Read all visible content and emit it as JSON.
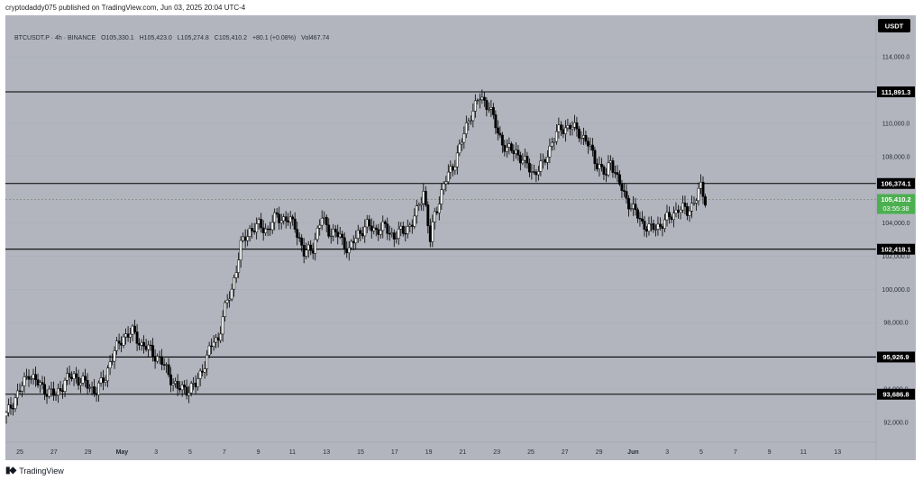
{
  "header": {
    "publisher_line": "cryptodaddy075 published on TradingView.com, Jun 03, 2025 20:04 UTC-4"
  },
  "legend": {
    "symbol": "BTCUSDT.P · 4h · BINANCE",
    "open": "O105,330.1",
    "high": "H105,423.0",
    "low": "L105,274.8",
    "close": "C105,410.2",
    "change": "+80.1 (+0.08%)",
    "volume": "Vol467.74"
  },
  "currency_badge": "USDT",
  "footer": {
    "brand": "TradingView",
    "logo_icon": "tradingview-logo-icon"
  },
  "colors": {
    "background": "#b2b5be",
    "candle_up": "#ffffff",
    "candle_down": "#000000",
    "level_line": "#000000",
    "current_price": "#4caf50"
  },
  "chart_data": {
    "type": "candlestick",
    "ylim": [
      90800,
      116500
    ],
    "y_ticks": [
      "92,000.0",
      "94,000.0",
      "98,000.0",
      "100,000.0",
      "102,000.0",
      "104,000.0",
      "108,000.0",
      "110,000.0",
      "114,000.0"
    ],
    "x_ticks": [
      "25",
      "27",
      "29",
      "May",
      "3",
      "5",
      "7",
      "9",
      "11",
      "13",
      "15",
      "17",
      "19",
      "21",
      "23",
      "25",
      "27",
      "29",
      "Jun",
      "3",
      "5",
      "7",
      "9",
      "11",
      "13"
    ],
    "levels": [
      {
        "value": 111891.3,
        "label": "111,891.3"
      },
      {
        "value": 106374.1,
        "label": "106,374.1"
      },
      {
        "value": 102418.1,
        "label": "102,418.1"
      },
      {
        "value": 95926.9,
        "label": "95,926.9"
      },
      {
        "value": 93686.8,
        "label": "93,686.8"
      }
    ],
    "current_price": {
      "value": 105410.2,
      "label": "105,410.2",
      "countdown": "03:55:38"
    },
    "close_path": [
      [
        0,
        92400
      ],
      [
        4,
        93500
      ],
      [
        8,
        94400
      ],
      [
        10,
        95000
      ],
      [
        14,
        94300
      ],
      [
        18,
        93900
      ],
      [
        22,
        93600
      ],
      [
        26,
        94500
      ],
      [
        30,
        94800
      ],
      [
        36,
        94200
      ],
      [
        40,
        93900
      ],
      [
        44,
        94700
      ],
      [
        46,
        95700
      ],
      [
        52,
        97200
      ],
      [
        56,
        97400
      ],
      [
        60,
        96700
      ],
      [
        64,
        96300
      ],
      [
        68,
        95800
      ],
      [
        72,
        94900
      ],
      [
        76,
        94000
      ],
      [
        80,
        94000
      ],
      [
        84,
        94200
      ],
      [
        88,
        95600
      ],
      [
        92,
        96900
      ],
      [
        94,
        97000
      ],
      [
        96,
        98400
      ],
      [
        100,
        100000
      ],
      [
        104,
        102600
      ],
      [
        108,
        103600
      ],
      [
        112,
        103800
      ],
      [
        116,
        103600
      ],
      [
        120,
        104400
      ],
      [
        124,
        104200
      ],
      [
        128,
        103900
      ],
      [
        132,
        102100
      ],
      [
        136,
        102600
      ],
      [
        140,
        104300
      ],
      [
        144,
        103400
      ],
      [
        148,
        103200
      ],
      [
        152,
        102300
      ],
      [
        156,
        103400
      ],
      [
        160,
        103800
      ],
      [
        164,
        103600
      ],
      [
        168,
        103700
      ],
      [
        172,
        103200
      ],
      [
        176,
        103500
      ],
      [
        180,
        104000
      ],
      [
        182,
        104600
      ],
      [
        185,
        106000
      ],
      [
        188,
        102900
      ],
      [
        190,
        104500
      ],
      [
        194,
        106300
      ],
      [
        198,
        107400
      ],
      [
        202,
        108900
      ],
      [
        206,
        110600
      ],
      [
        210,
        111500
      ],
      [
        214,
        111100
      ],
      [
        218,
        109400
      ],
      [
        222,
        108400
      ],
      [
        226,
        108300
      ],
      [
        230,
        107600
      ],
      [
        234,
        107000
      ],
      [
        238,
        107500
      ],
      [
        242,
        108900
      ],
      [
        246,
        109700
      ],
      [
        250,
        109800
      ],
      [
        254,
        109500
      ],
      [
        258,
        108700
      ],
      [
        262,
        107600
      ],
      [
        266,
        106800
      ],
      [
        268,
        107900
      ],
      [
        271,
        106600
      ],
      [
        274,
        105700
      ],
      [
        278,
        104800
      ],
      [
        282,
        104000
      ],
      [
        286,
        103600
      ],
      [
        290,
        103900
      ],
      [
        294,
        104300
      ],
      [
        298,
        104900
      ],
      [
        302,
        104700
      ],
      [
        306,
        105500
      ],
      [
        308,
        106100
      ],
      [
        310,
        105400
      ]
    ]
  }
}
